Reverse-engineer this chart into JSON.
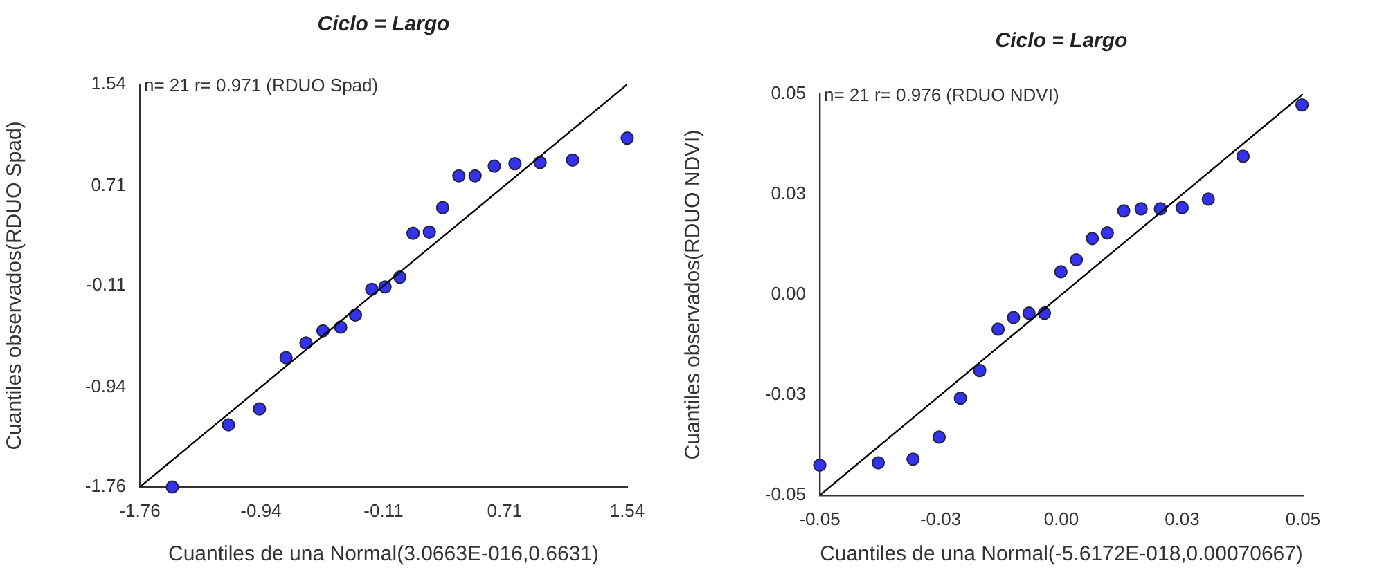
{
  "chart_data": [
    {
      "type": "scatter",
      "title": "Ciclo = Largo",
      "xlabel": "Cuantiles de una Normal(3.0663E-016,0.6631)",
      "ylabel": "Cuantiles observados(RDUO Spad)",
      "annotations": [
        "n= 21 r= 0.971 (RDUO Spad)"
      ],
      "xlim": [
        -1.76,
        1.54
      ],
      "ylim": [
        -1.76,
        1.54
      ],
      "xticks": [
        -1.76,
        -0.94,
        -0.11,
        0.71,
        1.54
      ],
      "yticks": [
        -1.76,
        -0.94,
        -0.11,
        0.71,
        1.54
      ],
      "series": [
        {
          "marker": "circle",
          "color": "#3333ee",
          "x": [
            -1.54,
            -1.16,
            -0.95,
            -0.77,
            -0.635,
            -0.52,
            -0.4,
            -0.3,
            -0.19,
            -0.1,
            0.0,
            0.09,
            0.2,
            0.29,
            0.4,
            0.51,
            0.64,
            0.78,
            0.95,
            1.17,
            1.54
          ],
          "values": [
            -1.76,
            -1.25,
            -1.12,
            -0.7,
            -0.58,
            -0.48,
            -0.45,
            -0.35,
            -0.14,
            -0.12,
            -0.04,
            0.32,
            0.33,
            0.53,
            0.79,
            0.79,
            0.87,
            0.89,
            0.9,
            0.92,
            1.1
          ]
        },
        {
          "type": "line",
          "marker": "none",
          "color": "#000000",
          "x": [
            -1.76,
            1.54
          ],
          "values": [
            -1.76,
            1.54
          ]
        }
      ]
    },
    {
      "type": "scatter",
      "title": "Ciclo = Largo",
      "xlabel": "Cuantiles de una Normal(-5.6172E-018,0.00070667)",
      "ylabel": "Cuantiles observados(RDUO NDVI)",
      "annotations": [
        "n= 21 r= 0.976 (RDUO NDVI)"
      ],
      "xlim": [
        -0.05,
        0.05
      ],
      "ylim": [
        -0.05,
        0.05
      ],
      "xticks": [
        -0.05,
        {
          "value": -0.025,
          "label": "-0.03"
        },
        {
          "value": 0,
          "label": "0.00"
        },
        {
          "value": 0.025,
          "label": "0.03"
        },
        0.05
      ],
      "yticks": [
        -0.05,
        {
          "value": -0.025,
          "label": "-0.03"
        },
        {
          "value": 0,
          "label": "0.00"
        },
        {
          "value": 0.025,
          "label": "0.03"
        },
        0.05
      ],
      "series": [
        {
          "marker": "circle",
          "color": "#3333ee",
          "x": [
            -0.05,
            -0.0379,
            -0.0307,
            -0.0253,
            -0.0209,
            -0.0169,
            -0.0131,
            -0.0099,
            -0.0067,
            -0.0035,
            -0.0001,
            0.0031,
            0.0064,
            0.0095,
            0.0129,
            0.0165,
            0.0205,
            0.025,
            0.0304,
            0.0376,
            0.0498
          ],
          "values": [
            -0.0425,
            -0.0419,
            -0.041,
            -0.0355,
            -0.0258,
            -0.0189,
            -0.0086,
            -0.0057,
            -0.0046,
            -0.0046,
            0.0057,
            0.0087,
            0.014,
            0.0154,
            0.0209,
            0.0214,
            0.0214,
            0.0217,
            0.0238,
            0.0345,
            0.0473
          ]
        },
        {
          "type": "line",
          "marker": "none",
          "color": "#000000",
          "x": [
            -0.05,
            0.05
          ],
          "values": [
            -0.05,
            0.05
          ]
        }
      ]
    }
  ]
}
